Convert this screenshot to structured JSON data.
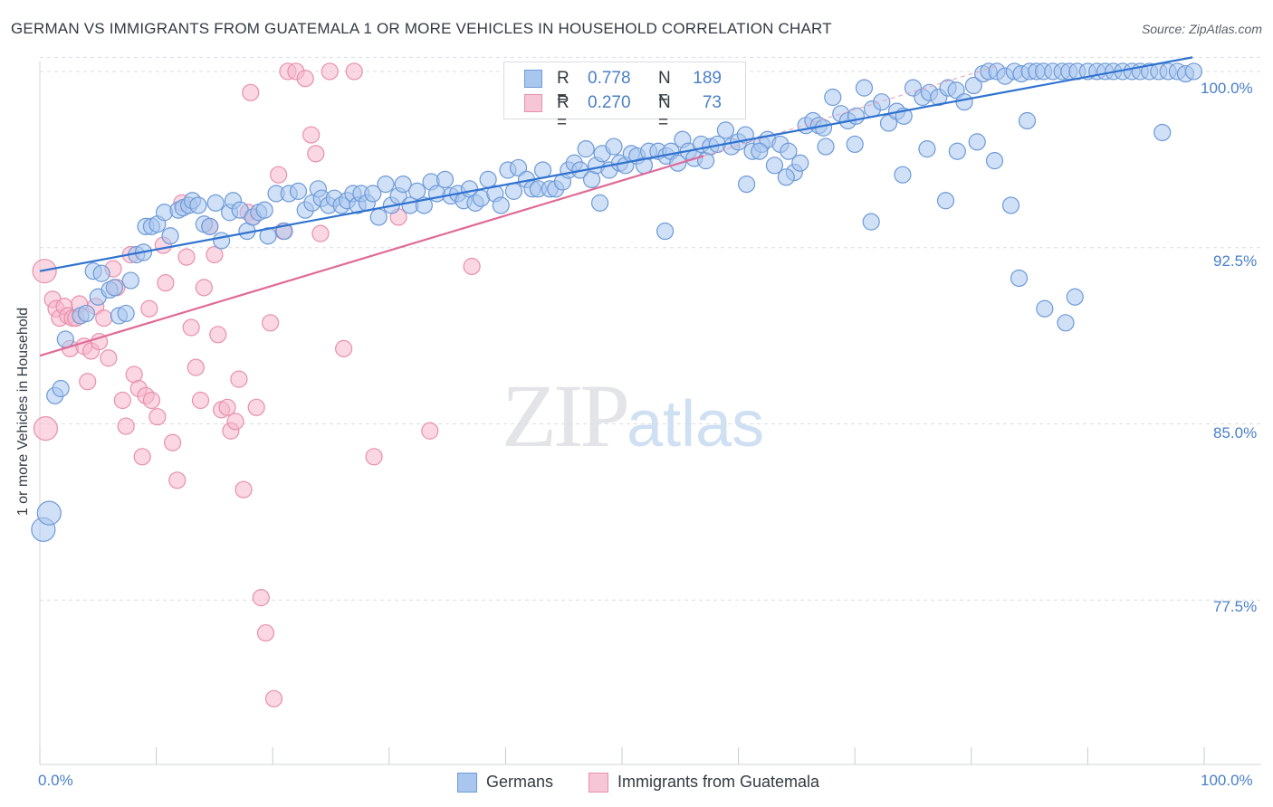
{
  "title": "GERMAN VS IMMIGRANTS FROM GUATEMALA 1 OR MORE VEHICLES IN HOUSEHOLD CORRELATION CHART",
  "source": "Source: ZipAtlas.com",
  "watermark": {
    "zip": "ZIP",
    "atlas": "atlas"
  },
  "legend_top": {
    "rows": [
      {
        "r_label": "R =",
        "r_value": "0.778",
        "n_label": "N =",
        "n_value": "189"
      },
      {
        "r_label": "R =",
        "r_value": "0.270",
        "n_label": "N =",
        "n_value": "73"
      }
    ]
  },
  "legend_bottom": [
    "Germans",
    "Immigrants from Guatemala"
  ],
  "colors": {
    "german_fill": "#a9c6ee",
    "german_stroke": "#6d9ad8",
    "german_line": "#2f72d0",
    "guat_fill": "#f6b6ca",
    "guat_stroke": "#e890ae",
    "guat_line": "#e06b97",
    "tick_text": "#4a7fc9",
    "grid": "#d9dde2"
  },
  "chart_data": {
    "type": "scatter",
    "title": "GERMAN VS IMMIGRANTS FROM GUATEMALA 1 OR MORE VEHICLES IN HOUSEHOLD CORRELATION CHART",
    "xlabel": "",
    "ylabel": "1 or more Vehicles in Household",
    "xlim": [
      0,
      100
    ],
    "ylim": [
      70.5,
      101.5
    ],
    "x_tick_labels": [
      "0.0%",
      "100.0%"
    ],
    "y_ticks": [
      77.5,
      85.0,
      92.5,
      100.0
    ],
    "y_tick_labels": [
      "77.5%",
      "85.0%",
      "92.5%",
      "100.0%"
    ],
    "grid": "horizontal dashed",
    "legend_position": "top-center",
    "series": [
      {
        "name": "Germans",
        "r": 0.778,
        "n": 189,
        "trend": {
          "x": [
            0,
            99
          ],
          "y": [
            91.5,
            100.6
          ]
        },
        "points": [
          [
            0.3,
            80.5
          ],
          [
            0.8,
            81.2
          ],
          [
            1.3,
            86.2
          ],
          [
            1.8,
            86.5
          ],
          [
            2.2,
            88.6
          ],
          [
            3.5,
            89.6
          ],
          [
            4.0,
            89.7
          ],
          [
            4.6,
            91.5
          ],
          [
            5.0,
            90.4
          ],
          [
            5.3,
            91.4
          ],
          [
            6.0,
            90.7
          ],
          [
            6.4,
            90.8
          ],
          [
            6.8,
            89.6
          ],
          [
            7.4,
            89.7
          ],
          [
            7.8,
            91.1
          ],
          [
            8.3,
            92.2
          ],
          [
            8.9,
            92.3
          ],
          [
            9.1,
            93.4
          ],
          [
            9.6,
            93.4
          ],
          [
            10.1,
            93.5
          ],
          [
            10.7,
            94.0
          ],
          [
            11.2,
            93.0
          ],
          [
            11.9,
            94.1
          ],
          [
            12.3,
            94.2
          ],
          [
            12.8,
            94.3
          ],
          [
            13.1,
            94.5
          ],
          [
            13.6,
            94.3
          ],
          [
            14.1,
            93.5
          ],
          [
            14.6,
            93.4
          ],
          [
            15.1,
            94.4
          ],
          [
            15.6,
            92.8
          ],
          [
            16.3,
            94.0
          ],
          [
            16.6,
            94.5
          ],
          [
            17.2,
            94.1
          ],
          [
            17.8,
            93.2
          ],
          [
            18.3,
            93.8
          ],
          [
            18.8,
            94.0
          ],
          [
            19.3,
            94.1
          ],
          [
            19.6,
            93.0
          ],
          [
            20.3,
            94.8
          ],
          [
            21.0,
            93.2
          ],
          [
            21.4,
            94.8
          ],
          [
            22.2,
            94.9
          ],
          [
            22.8,
            94.1
          ],
          [
            23.4,
            94.4
          ],
          [
            23.9,
            95.0
          ],
          [
            24.2,
            94.6
          ],
          [
            24.8,
            94.3
          ],
          [
            25.3,
            94.6
          ],
          [
            25.9,
            94.3
          ],
          [
            26.4,
            94.5
          ],
          [
            26.9,
            94.8
          ],
          [
            27.3,
            94.3
          ],
          [
            27.6,
            94.8
          ],
          [
            28.1,
            94.4
          ],
          [
            28.6,
            94.8
          ],
          [
            29.1,
            93.8
          ],
          [
            29.7,
            95.2
          ],
          [
            30.2,
            94.3
          ],
          [
            30.8,
            94.7
          ],
          [
            31.2,
            95.2
          ],
          [
            31.8,
            94.3
          ],
          [
            32.4,
            94.9
          ],
          [
            33.0,
            94.3
          ],
          [
            33.6,
            95.3
          ],
          [
            34.1,
            94.8
          ],
          [
            34.8,
            95.4
          ],
          [
            35.3,
            94.7
          ],
          [
            35.9,
            94.8
          ],
          [
            36.4,
            94.5
          ],
          [
            36.9,
            95.0
          ],
          [
            37.4,
            94.4
          ],
          [
            37.9,
            94.6
          ],
          [
            38.5,
            95.4
          ],
          [
            39.1,
            94.8
          ],
          [
            39.6,
            94.3
          ],
          [
            40.2,
            95.8
          ],
          [
            40.7,
            94.9
          ],
          [
            41.1,
            95.9
          ],
          [
            41.8,
            95.4
          ],
          [
            42.3,
            95.0
          ],
          [
            42.8,
            95.0
          ],
          [
            43.2,
            95.8
          ],
          [
            43.8,
            95.0
          ],
          [
            44.3,
            95.0
          ],
          [
            44.9,
            95.3
          ],
          [
            45.4,
            95.8
          ],
          [
            45.9,
            96.1
          ],
          [
            46.4,
            95.8
          ],
          [
            46.9,
            96.7
          ],
          [
            47.4,
            95.4
          ],
          [
            47.8,
            96.0
          ],
          [
            48.3,
            96.5
          ],
          [
            48.9,
            95.8
          ],
          [
            49.3,
            96.8
          ],
          [
            49.8,
            96.1
          ],
          [
            50.3,
            96.0
          ],
          [
            50.8,
            96.5
          ],
          [
            51.3,
            96.4
          ],
          [
            51.9,
            96.0
          ],
          [
            52.3,
            96.6
          ],
          [
            53.1,
            96.6
          ],
          [
            53.8,
            96.4
          ],
          [
            54.2,
            96.6
          ],
          [
            54.8,
            96.1
          ],
          [
            55.2,
            97.1
          ],
          [
            55.7,
            96.6
          ],
          [
            56.2,
            96.3
          ],
          [
            56.8,
            96.9
          ],
          [
            57.2,
            96.2
          ],
          [
            57.6,
            96.8
          ],
          [
            58.2,
            96.9
          ],
          [
            58.9,
            97.5
          ],
          [
            59.4,
            96.8
          ],
          [
            60.0,
            97.0
          ],
          [
            60.6,
            97.3
          ],
          [
            61.2,
            96.6
          ],
          [
            62.0,
            96.9
          ],
          [
            62.5,
            97.1
          ],
          [
            63.1,
            96.0
          ],
          [
            63.6,
            96.9
          ],
          [
            64.3,
            96.6
          ],
          [
            64.8,
            95.7
          ],
          [
            65.3,
            96.1
          ],
          [
            65.8,
            97.7
          ],
          [
            66.4,
            97.9
          ],
          [
            66.9,
            97.7
          ],
          [
            67.3,
            97.6
          ],
          [
            68.1,
            98.9
          ],
          [
            68.8,
            98.2
          ],
          [
            69.4,
            97.9
          ],
          [
            70.1,
            98.1
          ],
          [
            70.8,
            99.3
          ],
          [
            71.5,
            98.4
          ],
          [
            72.3,
            98.7
          ],
          [
            72.9,
            97.8
          ],
          [
            73.6,
            98.3
          ],
          [
            74.2,
            98.1
          ],
          [
            75.0,
            99.3
          ],
          [
            75.8,
            98.9
          ],
          [
            76.4,
            99.1
          ],
          [
            77.2,
            98.9
          ],
          [
            78.0,
            99.3
          ],
          [
            78.7,
            99.2
          ],
          [
            79.4,
            98.7
          ],
          [
            80.2,
            99.4
          ],
          [
            81.0,
            99.9
          ],
          [
            81.5,
            100.0
          ],
          [
            82.2,
            100.0
          ],
          [
            82.9,
            99.8
          ],
          [
            83.7,
            100.0
          ],
          [
            84.3,
            99.9
          ],
          [
            85.0,
            100.0
          ],
          [
            85.6,
            100.0
          ],
          [
            86.2,
            100.0
          ],
          [
            87.0,
            100.0
          ],
          [
            87.8,
            100.0
          ],
          [
            88.4,
            100.0
          ],
          [
            89.1,
            100.0
          ],
          [
            90.0,
            100.0
          ],
          [
            90.8,
            100.0
          ],
          [
            91.5,
            100.0
          ],
          [
            92.2,
            100.0
          ],
          [
            93.0,
            100.0
          ],
          [
            93.8,
            100.0
          ],
          [
            94.5,
            100.0
          ],
          [
            95.3,
            100.0
          ],
          [
            96.1,
            100.0
          ],
          [
            96.9,
            100.0
          ],
          [
            97.7,
            100.0
          ],
          [
            98.4,
            99.9
          ],
          [
            99.1,
            100.0
          ],
          [
            60.7,
            95.2
          ],
          [
            64.1,
            95.5
          ],
          [
            67.5,
            96.8
          ],
          [
            70.0,
            96.9
          ],
          [
            74.1,
            95.6
          ],
          [
            76.2,
            96.7
          ],
          [
            77.8,
            94.5
          ],
          [
            78.8,
            96.6
          ],
          [
            80.5,
            97.0
          ],
          [
            82.0,
            96.2
          ],
          [
            83.4,
            94.3
          ],
          [
            84.1,
            91.2
          ],
          [
            86.3,
            89.9
          ],
          [
            88.1,
            89.3
          ],
          [
            88.9,
            90.4
          ],
          [
            96.4,
            97.4
          ],
          [
            48.1,
            94.4
          ],
          [
            53.7,
            93.2
          ],
          [
            71.4,
            93.6
          ],
          [
            84.8,
            97.9
          ],
          [
            61.8,
            96.6
          ]
        ]
      },
      {
        "name": "Immigrants from Guatemala",
        "r": 0.27,
        "n": 73,
        "trend": {
          "x": [
            0,
            57
          ],
          "y": [
            87.9,
            96.4
          ]
        },
        "points": [
          [
            0.4,
            91.5
          ],
          [
            0.5,
            84.8
          ],
          [
            1.1,
            90.3
          ],
          [
            1.4,
            89.9
          ],
          [
            1.7,
            89.5
          ],
          [
            2.1,
            90.0
          ],
          [
            2.4,
            89.6
          ],
          [
            2.6,
            88.2
          ],
          [
            2.8,
            89.5
          ],
          [
            3.1,
            89.5
          ],
          [
            3.4,
            90.1
          ],
          [
            3.8,
            88.3
          ],
          [
            4.1,
            86.8
          ],
          [
            4.4,
            88.1
          ],
          [
            4.8,
            90.0
          ],
          [
            5.1,
            88.5
          ],
          [
            5.5,
            89.5
          ],
          [
            5.9,
            87.8
          ],
          [
            6.3,
            91.6
          ],
          [
            6.6,
            90.8
          ],
          [
            7.1,
            86.0
          ],
          [
            7.4,
            84.9
          ],
          [
            7.8,
            92.2
          ],
          [
            8.1,
            87.1
          ],
          [
            8.5,
            86.5
          ],
          [
            8.8,
            83.6
          ],
          [
            9.1,
            86.2
          ],
          [
            9.4,
            89.9
          ],
          [
            9.6,
            86.0
          ],
          [
            10.1,
            85.3
          ],
          [
            10.6,
            92.6
          ],
          [
            10.8,
            91.0
          ],
          [
            11.4,
            84.2
          ],
          [
            11.8,
            82.6
          ],
          [
            12.2,
            94.4
          ],
          [
            12.6,
            92.1
          ],
          [
            13.0,
            89.1
          ],
          [
            13.4,
            87.4
          ],
          [
            13.8,
            86.0
          ],
          [
            14.1,
            90.8
          ],
          [
            14.6,
            93.4
          ],
          [
            15.0,
            92.2
          ],
          [
            15.3,
            88.8
          ],
          [
            15.6,
            85.6
          ],
          [
            16.1,
            85.7
          ],
          [
            16.4,
            84.7
          ],
          [
            16.8,
            85.1
          ],
          [
            17.1,
            86.9
          ],
          [
            17.5,
            82.2
          ],
          [
            17.9,
            94.0
          ],
          [
            18.3,
            93.8
          ],
          [
            18.6,
            85.7
          ],
          [
            19.0,
            77.6
          ],
          [
            19.4,
            76.1
          ],
          [
            19.8,
            89.3
          ],
          [
            20.1,
            73.3
          ],
          [
            20.5,
            95.6
          ],
          [
            20.9,
            93.2
          ],
          [
            21.3,
            100.0
          ],
          [
            22.0,
            100.0
          ],
          [
            22.8,
            99.7
          ],
          [
            23.3,
            97.3
          ],
          [
            23.7,
            96.5
          ],
          [
            24.1,
            93.1
          ],
          [
            24.9,
            100.0
          ],
          [
            26.1,
            88.2
          ],
          [
            27.0,
            100.0
          ],
          [
            28.7,
            83.6
          ],
          [
            30.8,
            93.8
          ],
          [
            33.5,
            84.7
          ],
          [
            37.1,
            91.7
          ],
          [
            58.5,
            100.0
          ],
          [
            18.1,
            99.1
          ]
        ]
      }
    ]
  }
}
